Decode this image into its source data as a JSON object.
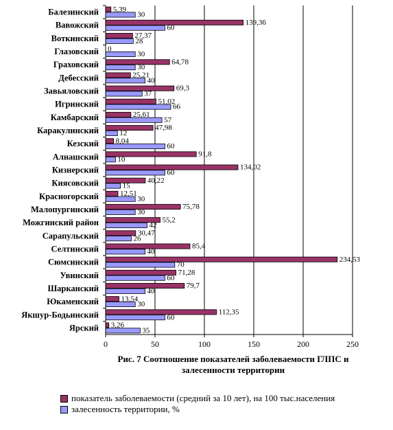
{
  "chart_data": {
    "type": "bar",
    "orientation": "horizontal",
    "title": "Рис. 7   Соотношение показателей заболеваемости ГЛПС и залесенности территории",
    "categories": [
      "Балезинский",
      "Вавожский",
      "Воткинский",
      "Глазовский",
      "Граховский",
      "Дебесский",
      "Завьяловский",
      "Игринский",
      "Камбарский",
      "Каракулинский",
      "Кезский",
      "Алнашский",
      "Кизнерский",
      "Киясовский",
      "Красногорский",
      "Малопургинский",
      "Можгинский район",
      "Сарапульский",
      "Селтинский",
      "Сюмсинский",
      "Увинский",
      "Шарканский",
      "Юкаменский",
      "Якшур-Бодьинский",
      "Ярский"
    ],
    "series": [
      {
        "name": "показатель заболеваемости (средний за 10 лет), на 100 тыс.населения",
        "color": "#993366",
        "values": [
          5.39,
          139.36,
          27.37,
          0,
          64.78,
          25.21,
          69.3,
          51.02,
          25.61,
          47.98,
          8.04,
          91.8,
          134.02,
          40.22,
          12.51,
          75.78,
          55.2,
          30.47,
          85.4,
          234.53,
          71.28,
          79.7,
          13.54,
          112.35,
          3.26
        ],
        "labels": [
          "5,39",
          "139,36",
          "27,37",
          "0",
          "64,78",
          "25,21",
          "69,3",
          "51,02",
          "25,61",
          "47,98",
          "8,04",
          "91,8",
          "134,02",
          "40,22",
          "12,51",
          "75,78",
          "55,2",
          "30,47",
          "85,4",
          "234,53",
          "71,28",
          "79,7",
          "13,54",
          "112,35",
          "3,26"
        ]
      },
      {
        "name": "залесенность территории, %",
        "color": "#9999ff",
        "values": [
          30,
          60,
          28,
          30,
          30,
          40,
          37,
          66,
          57,
          12,
          60,
          10,
          60,
          15,
          30,
          30,
          42,
          26,
          40,
          70,
          60,
          40,
          30,
          60,
          35
        ],
        "labels": [
          "30",
          "60",
          "28",
          "30",
          "30",
          "40",
          "37",
          "66",
          "57",
          "12",
          "60",
          "10",
          "60",
          "15",
          "30",
          "30",
          "42",
          "26",
          "40",
          "70",
          "60",
          "40",
          "30",
          "60",
          "35"
        ]
      }
    ],
    "xlim": [
      0,
      250
    ],
    "xticks": [
      "0",
      "50",
      "100",
      "150",
      "200",
      "250"
    ],
    "grid": true,
    "legend_position": "bottom"
  }
}
